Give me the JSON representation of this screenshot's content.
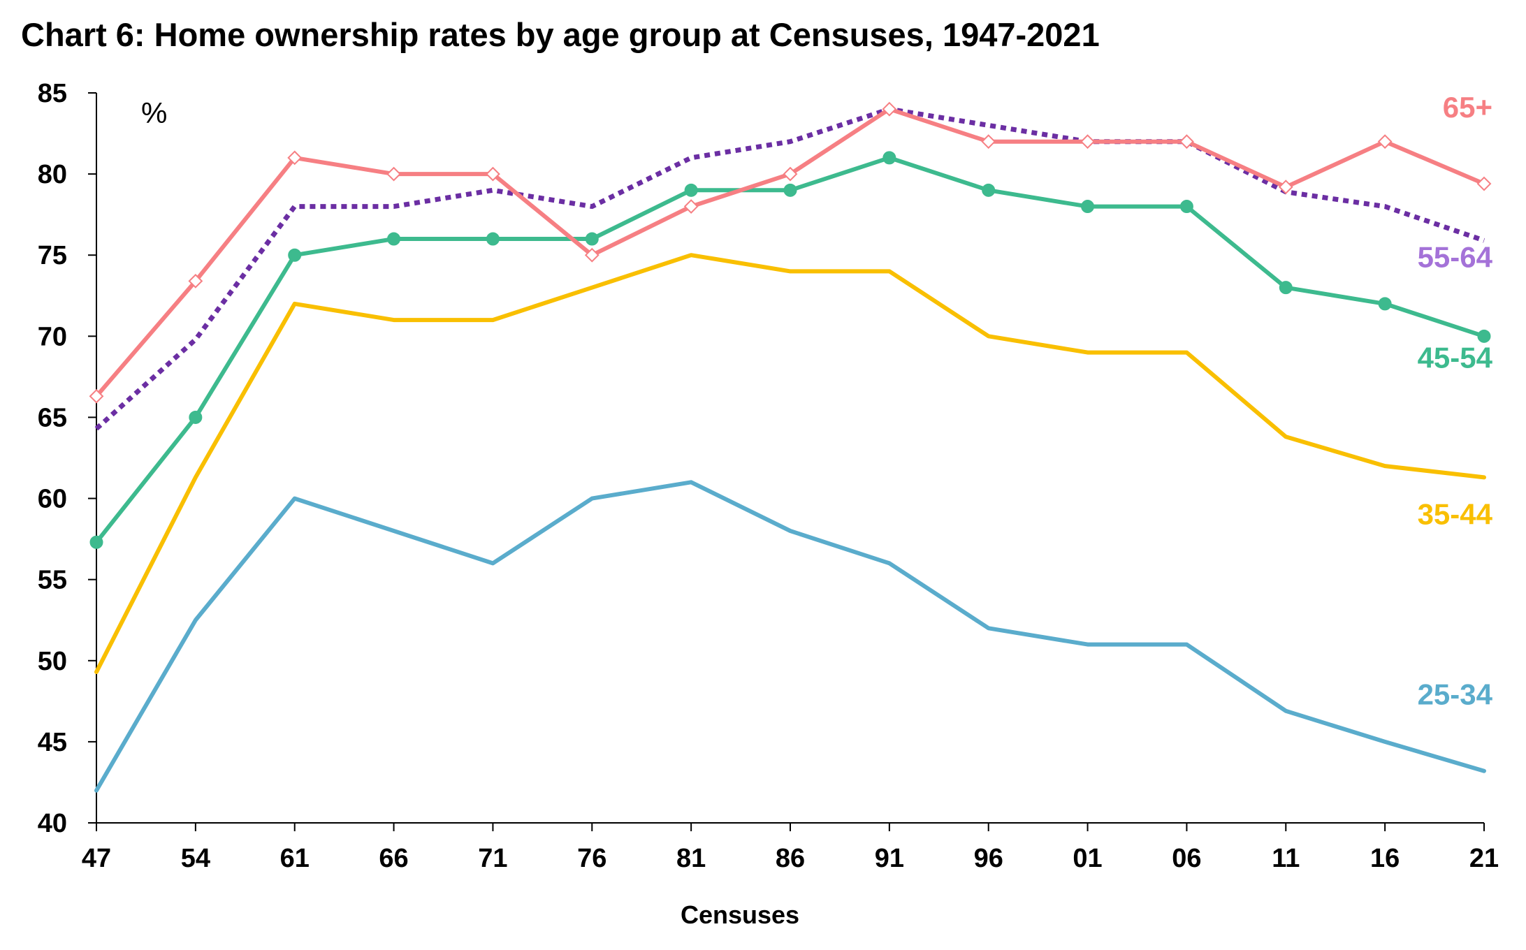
{
  "chart_data": {
    "type": "line",
    "title": "Chart 6: Home ownership rates by age group at Censuses, 1947-2021",
    "unit_label": "%",
    "xlabel": "Censuses",
    "ylabel": "",
    "ylim": [
      40,
      85
    ],
    "y_ticks": [
      "85",
      "80",
      "75",
      "70",
      "65",
      "60",
      "55",
      "50",
      "45",
      "40"
    ],
    "categories": [
      "47",
      "54",
      "61",
      "66",
      "71",
      "76",
      "81",
      "86",
      "91",
      "96",
      "01",
      "06",
      "11",
      "16",
      "21"
    ],
    "grid": false,
    "legend": "inline labels at right end of each line",
    "series": [
      {
        "name": "25-34",
        "color": "#5aaccc",
        "style": "solid",
        "marker": "none",
        "values": [
          42.0,
          52.5,
          60.0,
          58.0,
          56.0,
          60.0,
          61.0,
          58.0,
          56.0,
          52.0,
          51.0,
          51.0,
          46.9,
          45.0,
          43.2
        ]
      },
      {
        "name": "35-44",
        "color": "#f9bf00",
        "style": "solid",
        "marker": "none",
        "values": [
          49.3,
          61.3,
          72.0,
          71.0,
          71.0,
          73.0,
          75.0,
          74.0,
          74.0,
          70.0,
          69.0,
          69.0,
          63.8,
          62.0,
          61.3
        ]
      },
      {
        "name": "45-54",
        "color": "#3dba8e",
        "style": "solid",
        "marker": "circle",
        "values": [
          57.3,
          65.0,
          75.0,
          76.0,
          76.0,
          76.0,
          79.0,
          79.0,
          81.0,
          79.0,
          78.0,
          78.0,
          73.0,
          72.0,
          70.0
        ]
      },
      {
        "name": "55-64",
        "color": "#6b2ea3",
        "label_color": "#a472d8",
        "style": "dotted",
        "marker": "none",
        "values": [
          64.3,
          69.8,
          78.0,
          78.0,
          79.0,
          78.0,
          81.0,
          82.0,
          84.0,
          83.0,
          82.0,
          82.0,
          78.9,
          78.0,
          75.9
        ]
      },
      {
        "name": "65+",
        "color": "#f67f83",
        "style": "solid",
        "marker": "open-diamond",
        "values": [
          66.3,
          73.4,
          81.0,
          80.0,
          80.0,
          75.0,
          78.0,
          80.0,
          84.0,
          82.0,
          82.0,
          82.0,
          79.2,
          82.0,
          79.4
        ]
      }
    ]
  }
}
